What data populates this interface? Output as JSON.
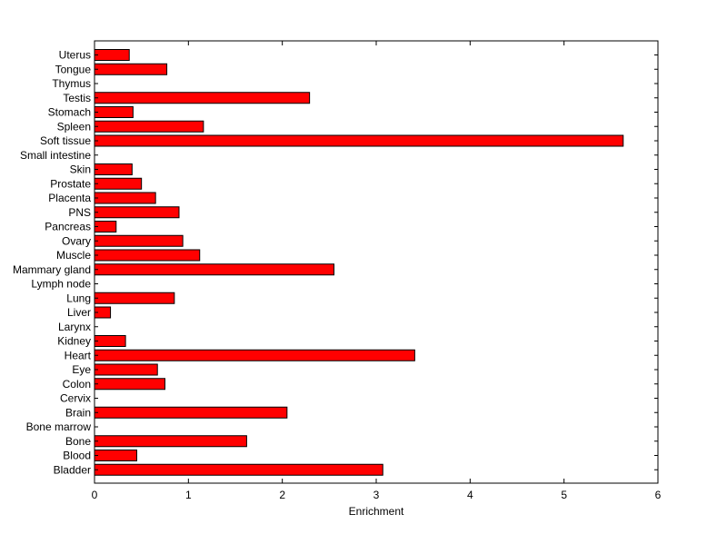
{
  "chart_data": {
    "type": "bar",
    "orientation": "horizontal",
    "title": "",
    "xlabel": "Enrichment",
    "ylabel": "",
    "xlim": [
      0,
      6
    ],
    "xticks": [
      "0",
      "1",
      "2",
      "3",
      "4",
      "5",
      "6"
    ],
    "grid": false,
    "legend": "none",
    "bar_color": "#ff0000",
    "bar_edge_color": "#000000",
    "categories": [
      "Uterus",
      "Tongue",
      "Thymus",
      "Testis",
      "Stomach",
      "Spleen",
      "Soft tissue",
      "Small intestine",
      "Skin",
      "Prostate",
      "Placenta",
      "PNS",
      "Pancreas",
      "Ovary",
      "Muscle",
      "Mammary gland",
      "Lymph node",
      "Lung",
      "Liver",
      "Larynx",
      "Kidney",
      "Heart",
      "Eye",
      "Colon",
      "Cervix",
      "Brain",
      "Bone marrow",
      "Bone",
      "Blood",
      "Bladder"
    ],
    "values": [
      0.37,
      0.77,
      0,
      2.29,
      0.41,
      1.16,
      5.63,
      0,
      0.4,
      0.5,
      0.65,
      0.9,
      0.23,
      0.94,
      1.12,
      2.55,
      0,
      0.85,
      0.17,
      0,
      0.33,
      3.41,
      0.67,
      0.75,
      0,
      2.05,
      0,
      1.62,
      0.45,
      3.07
    ]
  }
}
